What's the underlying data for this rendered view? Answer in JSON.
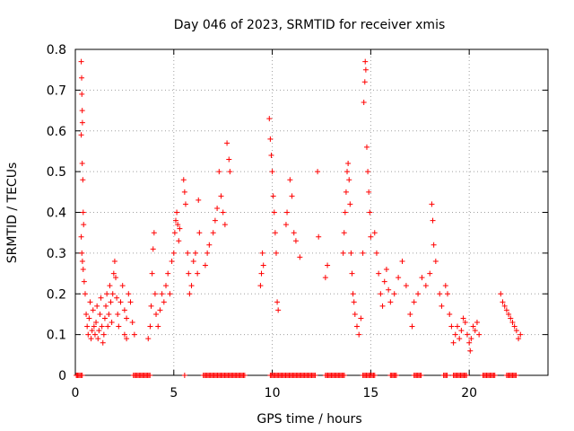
{
  "chart_data": {
    "type": "scatter",
    "title": "Day 046 of 2023, SRMTID for receiver xmis",
    "xlabel": "GPS time / hours",
    "ylabel": "SRMTID / TECUs",
    "xlim": [
      0,
      24
    ],
    "ylim": [
      0,
      0.8
    ],
    "xticks": [
      0,
      5,
      10,
      15,
      20
    ],
    "xtick_labels": [
      "0",
      "5",
      "10",
      "15",
      "20"
    ],
    "yticks": [
      0,
      0.1,
      0.2,
      0.3,
      0.4,
      0.5,
      0.6,
      0.7,
      0.8
    ],
    "ytick_labels": [
      "0",
      "0.1",
      "0.2",
      "0.3",
      "0.4",
      "0.5",
      "0.6",
      "0.7",
      "0.8"
    ],
    "grid": true,
    "marker": "+",
    "color": "#ff0000",
    "series": [
      {
        "name": "SRMTID",
        "points": [
          [
            0.1,
            0.0
          ],
          [
            0.3,
            0.77
          ],
          [
            0.32,
            0.73
          ],
          [
            0.33,
            0.69
          ],
          [
            0.35,
            0.65
          ],
          [
            0.36,
            0.62
          ],
          [
            0.3,
            0.59
          ],
          [
            0.35,
            0.52
          ],
          [
            0.38,
            0.48
          ],
          [
            0.4,
            0.4
          ],
          [
            0.42,
            0.37
          ],
          [
            0.3,
            0.34
          ],
          [
            0.33,
            0.3
          ],
          [
            0.36,
            0.28
          ],
          [
            0.4,
            0.26
          ],
          [
            0.45,
            0.23
          ],
          [
            0.5,
            0.2
          ],
          [
            0.55,
            0.15
          ],
          [
            0.6,
            0.12
          ],
          [
            0.65,
            0.1
          ],
          [
            0.7,
            0.14
          ],
          [
            0.75,
            0.18
          ],
          [
            0.8,
            0.09
          ],
          [
            0.85,
            0.11
          ],
          [
            0.9,
            0.16
          ],
          [
            0.95,
            0.12
          ],
          [
            1.0,
            0.1
          ],
          [
            1.05,
            0.13
          ],
          [
            1.1,
            0.17
          ],
          [
            1.15,
            0.09
          ],
          [
            1.2,
            0.11
          ],
          [
            1.25,
            0.15
          ],
          [
            1.3,
            0.19
          ],
          [
            1.35,
            0.12
          ],
          [
            1.4,
            0.08
          ],
          [
            1.45,
            0.1
          ],
          [
            1.5,
            0.14
          ],
          [
            1.55,
            0.17
          ],
          [
            1.6,
            0.2
          ],
          [
            1.65,
            0.12
          ],
          [
            1.7,
            0.15
          ],
          [
            1.75,
            0.22
          ],
          [
            1.8,
            0.18
          ],
          [
            1.85,
            0.13
          ],
          [
            1.9,
            0.2
          ],
          [
            1.95,
            0.25
          ],
          [
            2.0,
            0.28
          ],
          [
            2.05,
            0.24
          ],
          [
            2.1,
            0.19
          ],
          [
            2.15,
            0.15
          ],
          [
            2.2,
            0.12
          ],
          [
            2.3,
            0.18
          ],
          [
            2.4,
            0.22
          ],
          [
            2.5,
            0.16
          ],
          [
            2.6,
            0.14
          ],
          [
            2.7,
            0.2
          ],
          [
            2.8,
            0.18
          ],
          [
            2.9,
            0.13
          ],
          [
            3.0,
            0.1
          ],
          [
            2.5,
            0.1
          ],
          [
            2.6,
            0.09
          ],
          [
            3.7,
            0.09
          ],
          [
            3.8,
            0.12
          ],
          [
            3.85,
            0.17
          ],
          [
            3.9,
            0.25
          ],
          [
            3.95,
            0.31
          ],
          [
            4.0,
            0.35
          ],
          [
            4.05,
            0.2
          ],
          [
            4.1,
            0.15
          ],
          [
            4.2,
            0.12
          ],
          [
            4.3,
            0.16
          ],
          [
            4.4,
            0.2
          ],
          [
            4.5,
            0.18
          ],
          [
            4.6,
            0.22
          ],
          [
            4.7,
            0.25
          ],
          [
            4.8,
            0.2
          ],
          [
            4.9,
            0.28
          ],
          [
            5.0,
            0.3
          ],
          [
            5.05,
            0.35
          ],
          [
            5.1,
            0.38
          ],
          [
            5.15,
            0.4
          ],
          [
            5.2,
            0.37
          ],
          [
            5.25,
            0.33
          ],
          [
            5.3,
            0.36
          ],
          [
            5.5,
            0.48
          ],
          [
            5.55,
            0.45
          ],
          [
            5.6,
            0.42
          ],
          [
            5.7,
            0.3
          ],
          [
            5.75,
            0.25
          ],
          [
            5.8,
            0.2
          ],
          [
            5.9,
            0.22
          ],
          [
            6.0,
            0.28
          ],
          [
            6.1,
            0.3
          ],
          [
            6.2,
            0.25
          ],
          [
            6.25,
            0.43
          ],
          [
            6.3,
            0.35
          ],
          [
            6.6,
            0.27
          ],
          [
            6.7,
            0.3
          ],
          [
            6.8,
            0.32
          ],
          [
            7.0,
            0.35
          ],
          [
            7.1,
            0.38
          ],
          [
            7.2,
            0.41
          ],
          [
            7.3,
            0.5
          ],
          [
            7.4,
            0.44
          ],
          [
            7.5,
            0.4
          ],
          [
            7.6,
            0.37
          ],
          [
            7.7,
            0.57
          ],
          [
            7.8,
            0.53
          ],
          [
            7.85,
            0.5
          ],
          [
            9.4,
            0.22
          ],
          [
            9.45,
            0.25
          ],
          [
            9.5,
            0.3
          ],
          [
            9.55,
            0.27
          ],
          [
            9.85,
            0.63
          ],
          [
            9.9,
            0.58
          ],
          [
            9.95,
            0.54
          ],
          [
            10.0,
            0.5
          ],
          [
            10.05,
            0.44
          ],
          [
            10.1,
            0.4
          ],
          [
            10.15,
            0.35
          ],
          [
            10.2,
            0.3
          ],
          [
            10.25,
            0.18
          ],
          [
            10.3,
            0.16
          ],
          [
            10.7,
            0.37
          ],
          [
            10.75,
            0.4
          ],
          [
            10.9,
            0.48
          ],
          [
            11.0,
            0.44
          ],
          [
            11.1,
            0.35
          ],
          [
            11.2,
            0.33
          ],
          [
            11.4,
            0.29
          ],
          [
            12.3,
            0.5
          ],
          [
            12.35,
            0.34
          ],
          [
            12.7,
            0.24
          ],
          [
            12.8,
            0.27
          ],
          [
            13.6,
            0.3
          ],
          [
            13.65,
            0.35
          ],
          [
            13.7,
            0.4
          ],
          [
            13.75,
            0.45
          ],
          [
            13.8,
            0.5
          ],
          [
            13.85,
            0.52
          ],
          [
            13.9,
            0.48
          ],
          [
            13.95,
            0.42
          ],
          [
            14.0,
            0.3
          ],
          [
            14.05,
            0.25
          ],
          [
            14.1,
            0.2
          ],
          [
            14.15,
            0.18
          ],
          [
            14.2,
            0.15
          ],
          [
            14.3,
            0.12
          ],
          [
            14.4,
            0.1
          ],
          [
            14.5,
            0.14
          ],
          [
            14.6,
            0.3
          ],
          [
            14.65,
            0.67
          ],
          [
            14.7,
            0.72
          ],
          [
            14.72,
            0.77
          ],
          [
            14.75,
            0.75
          ],
          [
            14.8,
            0.56
          ],
          [
            14.85,
            0.5
          ],
          [
            14.9,
            0.45
          ],
          [
            14.95,
            0.4
          ],
          [
            15.0,
            0.34
          ],
          [
            15.2,
            0.35
          ],
          [
            15.3,
            0.3
          ],
          [
            15.4,
            0.25
          ],
          [
            15.5,
            0.2
          ],
          [
            15.6,
            0.17
          ],
          [
            15.7,
            0.23
          ],
          [
            15.8,
            0.26
          ],
          [
            15.9,
            0.21
          ],
          [
            16.0,
            0.18
          ],
          [
            16.2,
            0.2
          ],
          [
            16.4,
            0.24
          ],
          [
            16.6,
            0.28
          ],
          [
            16.8,
            0.22
          ],
          [
            17.0,
            0.15
          ],
          [
            17.1,
            0.12
          ],
          [
            17.2,
            0.18
          ],
          [
            17.4,
            0.2
          ],
          [
            17.6,
            0.24
          ],
          [
            17.8,
            0.22
          ],
          [
            18.0,
            0.25
          ],
          [
            18.1,
            0.42
          ],
          [
            18.15,
            0.38
          ],
          [
            18.2,
            0.32
          ],
          [
            18.3,
            0.28
          ],
          [
            18.5,
            0.2
          ],
          [
            18.6,
            0.17
          ],
          [
            18.8,
            0.22
          ],
          [
            18.9,
            0.2
          ],
          [
            19.0,
            0.15
          ],
          [
            19.1,
            0.12
          ],
          [
            19.2,
            0.08
          ],
          [
            19.3,
            0.1
          ],
          [
            19.4,
            0.12
          ],
          [
            19.5,
            0.09
          ],
          [
            19.6,
            0.11
          ],
          [
            19.7,
            0.14
          ],
          [
            19.8,
            0.13
          ],
          [
            19.9,
            0.1
          ],
          [
            20.0,
            0.08
          ],
          [
            20.05,
            0.06
          ],
          [
            20.1,
            0.09
          ],
          [
            20.2,
            0.12
          ],
          [
            20.3,
            0.11
          ],
          [
            20.4,
            0.13
          ],
          [
            20.5,
            0.1
          ],
          [
            21.6,
            0.2
          ],
          [
            21.7,
            0.18
          ],
          [
            21.8,
            0.17
          ],
          [
            21.9,
            0.16
          ],
          [
            22.0,
            0.15
          ],
          [
            22.1,
            0.14
          ],
          [
            22.2,
            0.13
          ],
          [
            22.3,
            0.12
          ],
          [
            22.4,
            0.11
          ],
          [
            22.5,
            0.09
          ],
          [
            22.6,
            0.1
          ]
        ],
        "zero_runs": [
          [
            0.05,
            0.4
          ],
          [
            2.95,
            3.8
          ],
          [
            5.55,
            5.6
          ],
          [
            6.5,
            8.6
          ],
          [
            9.9,
            12.2
          ],
          [
            12.7,
            13.7
          ],
          [
            14.6,
            15.2
          ],
          [
            16.0,
            16.3
          ],
          [
            17.2,
            17.6
          ],
          [
            18.7,
            18.9
          ],
          [
            19.2,
            19.9
          ],
          [
            20.7,
            21.3
          ],
          [
            21.9,
            22.4
          ]
        ]
      }
    ]
  }
}
